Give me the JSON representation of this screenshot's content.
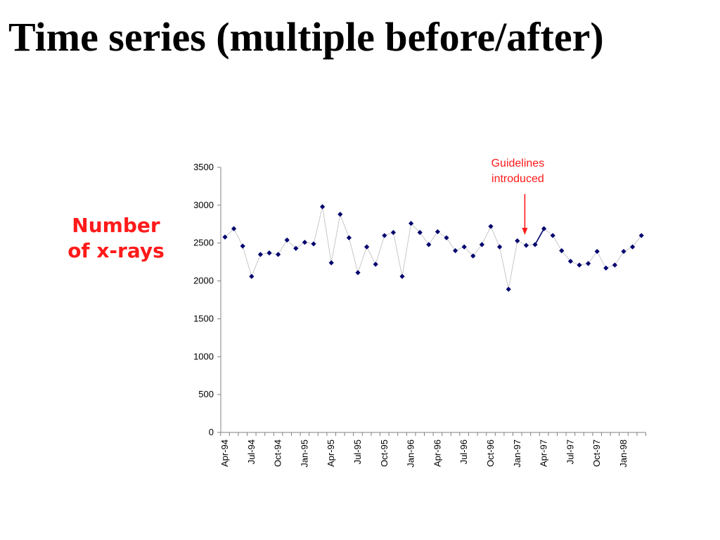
{
  "slide": {
    "title": "Time series (multiple before/after)",
    "ylabel_line1": "Number",
    "ylabel_line2": "of x-rays"
  },
  "chart_data": {
    "type": "line",
    "title": "",
    "xlabel": "",
    "ylabel": "Number of x-rays",
    "ylim": [
      0,
      3500
    ],
    "yticks": [
      0,
      500,
      1000,
      1500,
      2000,
      2500,
      3000,
      3500
    ],
    "grid": false,
    "x": [
      "Apr-94",
      "May-94",
      "Jun-94",
      "Jul-94",
      "Aug-94",
      "Sep-94",
      "Oct-94",
      "Nov-94",
      "Dec-94",
      "Jan-95",
      "Feb-95",
      "Mar-95",
      "Apr-95",
      "May-95",
      "Jun-95",
      "Jul-95",
      "Aug-95",
      "Sep-95",
      "Oct-95",
      "Nov-95",
      "Dec-95",
      "Jan-96",
      "Feb-96",
      "Mar-96",
      "Apr-96",
      "May-96",
      "Jun-96",
      "Jul-96",
      "Aug-96",
      "Sep-96",
      "Oct-96",
      "Nov-96",
      "Dec-96",
      "Jan-97",
      "Feb-97",
      "Mar-97",
      "Apr-97",
      "May-97",
      "Jun-97",
      "Jul-97",
      "Aug-97",
      "Sep-97",
      "Oct-97",
      "Nov-97",
      "Dec-97",
      "Jan-98",
      "Feb-98",
      "Mar-98"
    ],
    "tick_labels": [
      "Apr-94",
      "Jul-94",
      "Oct-94",
      "Jan-95",
      "Apr-95",
      "Jul-95",
      "Oct-95",
      "Jan-96",
      "Apr-96",
      "Jul-96",
      "Oct-96",
      "Jan-97",
      "Apr-97",
      "Jul-97",
      "Oct-97",
      "Jan-98"
    ],
    "series": [
      {
        "values": [
          2580,
          2690,
          2460,
          2060,
          2350,
          2370,
          2350,
          2540,
          2430,
          2510,
          2490,
          2980,
          2240,
          2880,
          2570,
          2110,
          2450,
          2220,
          2600,
          2640,
          2060,
          2760,
          2640,
          2480,
          2650,
          2570,
          2400,
          2450,
          2330,
          2480,
          2720,
          2450,
          1890,
          2530,
          2470,
          2480,
          2690,
          2600,
          2400,
          2260,
          2210,
          2230,
          2390,
          2170,
          2210,
          2390,
          2450,
          2600
        ],
        "color": "#00006e",
        "line_color": "#c8c8c8",
        "highlight_segment": [
          35,
          36
        ],
        "highlight_color": "#00006e"
      }
    ],
    "annotations": [
      {
        "text_line1": "Guidelines",
        "text_line2": "introduced",
        "color": "#ff1a1a",
        "x": "Feb-97",
        "y": 2480
      }
    ]
  }
}
